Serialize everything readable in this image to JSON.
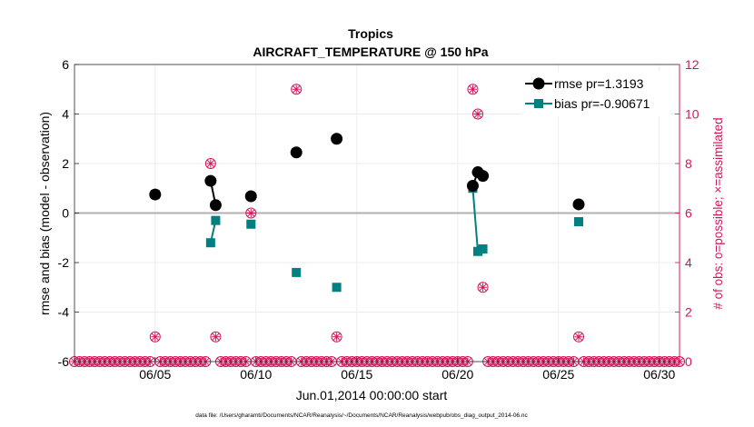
{
  "chart_data": {
    "type": "scatter",
    "title": "Tropics",
    "subtitle": "AIRCRAFT_TEMPERATURE @ 150 hPa",
    "xlabel": "Jun.01,2014 00:00:00 start",
    "ylabel": "rmse and bias (model - observation)",
    "y2label": "# of obs: o=possible; ×=assimilated",
    "footnote": "data file: /Users/gharamti/Documents/NCAR/Reanalysis/~/Documents/NCAR/Reanalysis/webpub/obs_diag_output_2014-06.nc",
    "x_unit": "days since Jun.01,2014 00:00:00",
    "xlim": [
      0,
      30
    ],
    "ylim": [
      -6,
      6
    ],
    "y2lim": [
      0,
      12
    ],
    "x_ticks": [
      4,
      9,
      14,
      19,
      24,
      29
    ],
    "x_tick_labels": [
      "06/05",
      "06/10",
      "06/15",
      "06/20",
      "06/25",
      "06/30"
    ],
    "y_ticks": [
      -6,
      -4,
      -2,
      0,
      2,
      4,
      6
    ],
    "y2_ticks": [
      0,
      2,
      4,
      6,
      8,
      10,
      12
    ],
    "grid": true,
    "legend_position": "top-right",
    "colors": {
      "rmse": "#000000",
      "bias": "#008080",
      "obs": "#d4145a",
      "zero_line": "#b0b0b0",
      "grid": "#ececec"
    },
    "series": [
      {
        "name": "rmse",
        "legend": "rmse pr=1.3193",
        "marker": "circle",
        "segments": [
          [
            [
              4.0,
              0.75
            ]
          ],
          [
            [
              6.75,
              1.3
            ],
            [
              7.0,
              0.32
            ]
          ],
          [
            [
              8.75,
              0.68
            ]
          ],
          [
            [
              11.0,
              2.45
            ]
          ],
          [
            [
              13.0,
              3.0
            ]
          ],
          [
            [
              19.75,
              1.1
            ],
            [
              20.0,
              1.65
            ],
            [
              20.25,
              1.5
            ]
          ],
          [
            [
              25.0,
              0.35
            ]
          ]
        ]
      },
      {
        "name": "bias",
        "legend": "bias pr=-0.90671",
        "marker": "square",
        "segments": [
          [
            [
              4.0,
              0.75
            ]
          ],
          [
            [
              6.75,
              -1.2
            ],
            [
              7.0,
              -0.3
            ]
          ],
          [
            [
              8.75,
              -0.45
            ]
          ],
          [
            [
              11.0,
              -2.4
            ]
          ],
          [
            [
              13.0,
              -3.0
            ]
          ],
          [
            [
              19.75,
              1.0
            ],
            [
              20.0,
              -1.55
            ],
            [
              20.25,
              -1.45
            ]
          ],
          [
            [
              25.0,
              -0.35
            ]
          ]
        ]
      }
    ],
    "obs_counts": {
      "name": "# of obs",
      "step": 0.25,
      "default_count": 0,
      "nonzero": [
        {
          "x": 4.0,
          "possible": 1,
          "assimilated": 1
        },
        {
          "x": 6.75,
          "possible": 8,
          "assimilated": 8
        },
        {
          "x": 7.0,
          "possible": 1,
          "assimilated": 1
        },
        {
          "x": 8.75,
          "possible": 6,
          "assimilated": 6
        },
        {
          "x": 11.0,
          "possible": 11,
          "assimilated": 11
        },
        {
          "x": 13.0,
          "possible": 1,
          "assimilated": 1
        },
        {
          "x": 19.75,
          "possible": 11,
          "assimilated": 11
        },
        {
          "x": 20.0,
          "possible": 10,
          "assimilated": 10
        },
        {
          "x": 20.25,
          "possible": 3,
          "assimilated": 3
        },
        {
          "x": 25.0,
          "possible": 1,
          "assimilated": 1
        }
      ]
    }
  }
}
